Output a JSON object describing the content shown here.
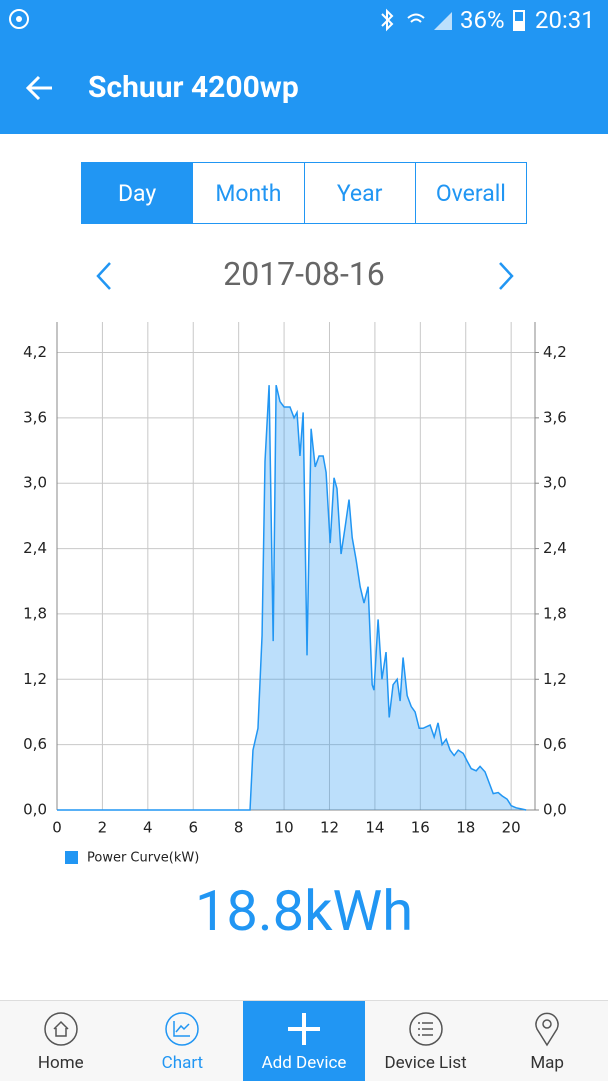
{
  "status_bar": {
    "battery": "36%",
    "time": "20:31"
  },
  "header": {
    "title": "Schuur 4200wp"
  },
  "tabs": [
    "Day",
    "Month",
    "Year",
    "Overall"
  ],
  "date": "2017-08-16",
  "chart_data": {
    "type": "area",
    "x": [
      0,
      8.5,
      8.63,
      8.85,
      9.03,
      9.16,
      9.34,
      9.52,
      9.65,
      9.82,
      10.0,
      10.26,
      10.44,
      10.57,
      10.7,
      10.84,
      11.01,
      11.19,
      11.37,
      11.54,
      11.72,
      11.85,
      12.03,
      12.2,
      12.33,
      12.51,
      12.69,
      12.86,
      13.0,
      13.17,
      13.35,
      13.52,
      13.7,
      13.88,
      13.96,
      14.14,
      14.31,
      14.49,
      14.63,
      14.8,
      14.98,
      15.11,
      15.24,
      15.42,
      15.6,
      15.77,
      15.95,
      16.12,
      16.43,
      16.61,
      16.78,
      16.96,
      17.14,
      17.31,
      17.49,
      17.67,
      17.89,
      18.06,
      18.24,
      18.46,
      18.63,
      18.85,
      19.03,
      19.21,
      19.43,
      19.6,
      19.82,
      20.0,
      20.22,
      20.44,
      20.66
    ],
    "series": [
      {
        "name": "Power Curve(kW)",
        "color": "#2196f3",
        "values": [
          0,
          0,
          0.55,
          0.75,
          1.6,
          3.2,
          3.9,
          1.55,
          3.9,
          3.75,
          3.7,
          3.7,
          3.6,
          3.65,
          3.25,
          3.65,
          1.42,
          3.5,
          3.15,
          3.25,
          3.25,
          3.1,
          2.45,
          3.05,
          2.95,
          2.35,
          2.6,
          2.85,
          2.5,
          2.3,
          2.05,
          1.9,
          2.05,
          1.15,
          1.1,
          1.75,
          1.2,
          1.45,
          0.85,
          1.15,
          1.2,
          1.0,
          1.4,
          1.05,
          0.95,
          0.9,
          0.75,
          0.75,
          0.78,
          0.67,
          0.8,
          0.6,
          0.65,
          0.55,
          0.5,
          0.55,
          0.52,
          0.45,
          0.38,
          0.36,
          0.4,
          0.35,
          0.25,
          0.15,
          0.16,
          0.13,
          0.1,
          0.04,
          0.02,
          0.01,
          0
        ]
      }
    ],
    "xlim": [
      0,
      21.05
    ],
    "xticks": [
      0,
      2,
      4,
      6,
      8,
      10,
      12,
      14,
      16,
      18,
      20
    ],
    "ylim": [
      0,
      4.48
    ],
    "yticks": [
      {
        "value": 0,
        "label": "0,0"
      },
      {
        "value": 0.6,
        "label": "0,6"
      },
      {
        "value": 1.2,
        "label": "1,2"
      },
      {
        "value": 1.8,
        "label": "1,8"
      },
      {
        "value": 2.4,
        "label": "2,4"
      },
      {
        "value": 3.0,
        "label": "3,0"
      },
      {
        "value": 3.6,
        "label": "3,6"
      },
      {
        "value": 4.2,
        "label": "4,2"
      }
    ],
    "y2lim": [
      0,
      4.48
    ],
    "y2ticks": [
      {
        "value": 0,
        "label": "0,0"
      },
      {
        "value": 0.6,
        "label": "0,6"
      },
      {
        "value": 1.2,
        "label": "1,2"
      },
      {
        "value": 1.8,
        "label": "1,8"
      },
      {
        "value": 2.4,
        "label": "2,4"
      },
      {
        "value": 3.0,
        "label": "3,0"
      },
      {
        "value": 3.6,
        "label": "3,6"
      },
      {
        "value": 4.2,
        "label": "4,2"
      }
    ],
    "grid": true
  },
  "total": "18.8kWh",
  "nav": [
    "Home",
    "Chart",
    "Add Device",
    "Device List",
    "Map"
  ]
}
